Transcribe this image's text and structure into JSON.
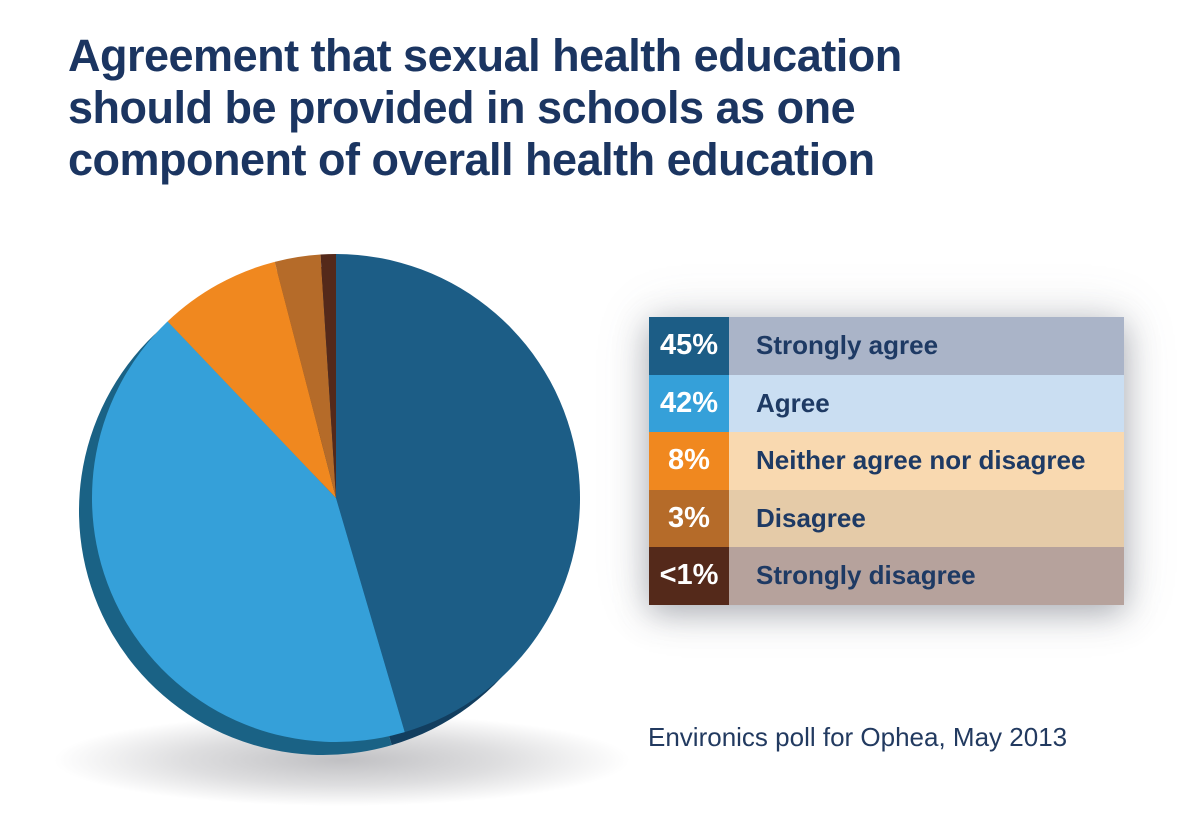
{
  "title": {
    "text": "Agreement that sexual health education should be provided in schools as one component of overall health education",
    "lines": [
      "Agreement that sexual health education",
      "should be provided in schools as one",
      "component of overall health education"
    ],
    "color": "#1b3561"
  },
  "chart_data": {
    "type": "pie",
    "title": "Agreement that sexual health education should be provided in schools as one component of overall health education",
    "categories": [
      "Strongly agree",
      "Agree",
      "Neither agree nor disagree",
      "Disagree",
      "Strongly disagree"
    ],
    "values": [
      45,
      42,
      8,
      3,
      1
    ],
    "value_labels": [
      "45%",
      "42%",
      "8%",
      "3%",
      "<1%"
    ],
    "colors": [
      "#1c5d86",
      "#35a0d9",
      "#f0881f",
      "#b56b29",
      "#54291a"
    ],
    "start_angle_deg": 0,
    "direction": "clockwise",
    "legend_position": "right",
    "style": "3d with bottom-left depth rim and soft ground shadow",
    "source": "Environics poll for Ophea, May 2013"
  },
  "legend": {
    "rows": [
      {
        "value": "45%",
        "label": "Strongly agree",
        "swatch": "#1c5d86",
        "row_bg": "#aab4c8"
      },
      {
        "value": "42%",
        "label": "Agree",
        "swatch": "#35a0d9",
        "row_bg": "#cadef2"
      },
      {
        "value": "8%",
        "label": "Neither agree nor disagree",
        "swatch": "#f0881f",
        "row_bg": "#f9d9b0"
      },
      {
        "value": "3%",
        "label": "Disagree",
        "swatch": "#b56b29",
        "row_bg": "#e5cba8"
      },
      {
        "value": "<1%",
        "label": "Strongly disagree",
        "swatch": "#54291a",
        "row_bg": "#b6a29c"
      }
    ]
  },
  "footer": {
    "source": "Environics poll for Ophea, May 2013"
  }
}
